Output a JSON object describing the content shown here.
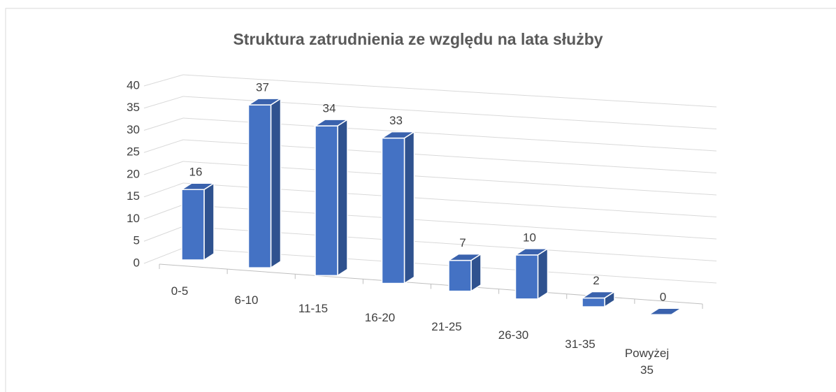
{
  "chart_data": {
    "type": "bar3d",
    "title": "Struktura zatrudnienia ze względu na lata służby",
    "categories": [
      "0-5",
      "6-10",
      "11-15",
      "16-20",
      "21-25",
      "26-30",
      "31-35",
      "Powyżej 35"
    ],
    "values": [
      16,
      37,
      34,
      33,
      7,
      10,
      2,
      0
    ],
    "color": "#4472c4",
    "ylim": [
      0,
      40
    ],
    "yticks": [
      0,
      5,
      10,
      15,
      20,
      25,
      30,
      35,
      40
    ],
    "grid": true
  }
}
